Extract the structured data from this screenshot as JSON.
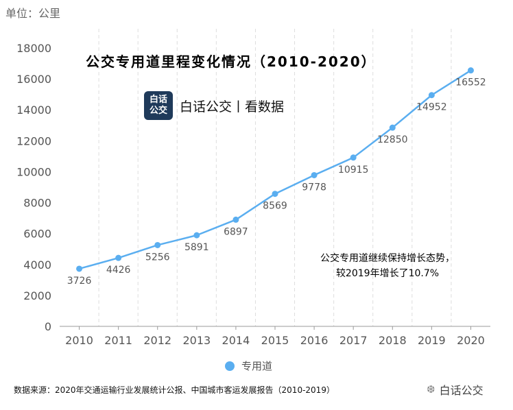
{
  "unit_label": "单位：公里",
  "brand": {
    "logo_line1": "白话",
    "logo_line2": "公交",
    "text": "白话公交丨看数据"
  },
  "annotation": {
    "line1": "公交专用道继续保持增长态势，",
    "line2": "较2019年增长了10.7%"
  },
  "source": "数据来源：2020年交通运输行业发展统计公报、中国城市客运发展报告（2010-2019）",
  "watermark": "白话公交",
  "colors": {
    "line": "#5aaef0",
    "axis": "#999999",
    "grid": "#dddddd",
    "tick": "#555555"
  },
  "chart_data": {
    "type": "line",
    "title": "公交专用道里程变化情况（2010-2020）",
    "xlabel": "",
    "ylabel": "单位：公里",
    "categories": [
      "2010",
      "2011",
      "2012",
      "2013",
      "2014",
      "2015",
      "2016",
      "2017",
      "2018",
      "2019",
      "2020"
    ],
    "ylim": [
      0,
      18000
    ],
    "yticks": [
      0,
      2000,
      4000,
      6000,
      8000,
      10000,
      12000,
      14000,
      16000,
      18000
    ],
    "series": [
      {
        "name": "专用道",
        "values": [
          3726,
          4426,
          5256,
          5891,
          6897,
          8569,
          9778,
          10915,
          12850,
          14952,
          16552
        ]
      }
    ],
    "legend": "bottom-center",
    "grid": "vertical-dashed"
  }
}
